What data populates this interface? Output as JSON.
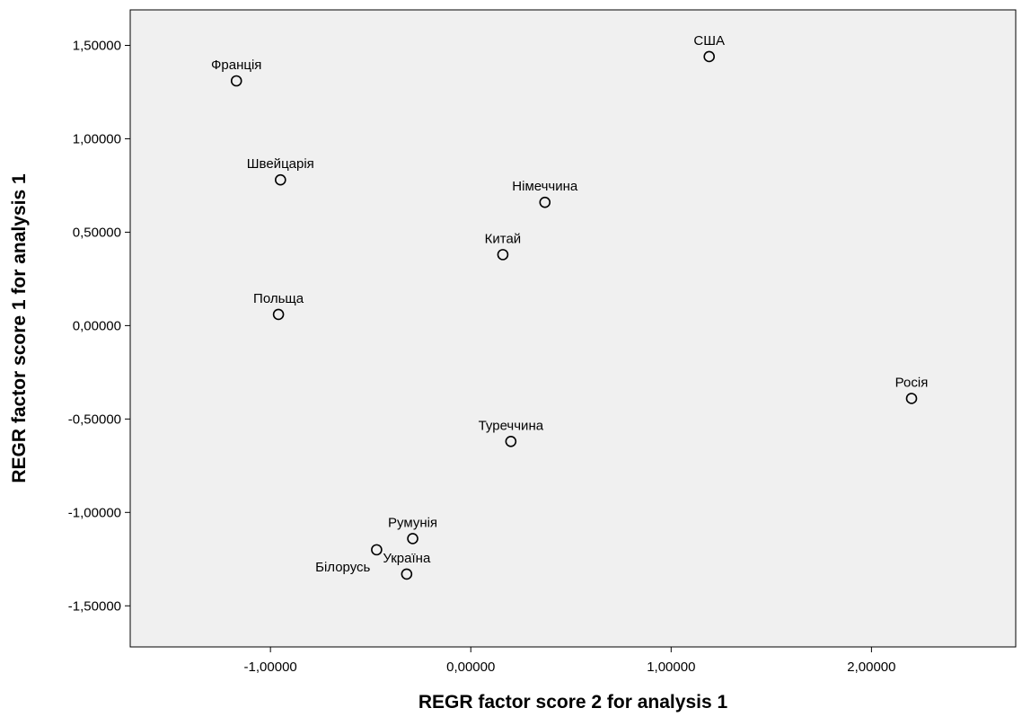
{
  "chart_data": {
    "type": "scatter",
    "xlabel": "REGR factor score   2 for analysis 1",
    "ylabel": "REGR factor score   1 for analysis 1",
    "xlim": [
      -1.7,
      2.72
    ],
    "ylim": [
      -1.72,
      1.69
    ],
    "xticks": [
      -1.0,
      0.0,
      1.0,
      2.0
    ],
    "xtick_labels": [
      "-1,00000",
      "0,00000",
      "1,00000",
      "2,00000"
    ],
    "yticks": [
      1.5,
      1.0,
      0.5,
      0.0,
      -0.5,
      -1.0,
      -1.5
    ],
    "ytick_labels": [
      "1,50000",
      "1,00000",
      "0,50000",
      "0,00000",
      "-0,50000",
      "-1,00000",
      "-1,50000"
    ],
    "grid": false,
    "colors": {
      "plot_background": "#f0f0f0",
      "marker_stroke": "#000000",
      "marker_fill": "#f0f0f0"
    },
    "points": [
      {
        "label": "США",
        "x": 1.19,
        "y": 1.44,
        "label_pos": "above"
      },
      {
        "label": "Франція",
        "x": -1.17,
        "y": 1.31,
        "label_pos": "above"
      },
      {
        "label": "Швейцарія",
        "x": -0.95,
        "y": 0.78,
        "label_pos": "above"
      },
      {
        "label": "Німеччина",
        "x": 0.37,
        "y": 0.66,
        "label_pos": "above"
      },
      {
        "label": "Китай",
        "x": 0.16,
        "y": 0.38,
        "label_pos": "above"
      },
      {
        "label": "Польща",
        "x": -0.96,
        "y": 0.06,
        "label_pos": "above"
      },
      {
        "label": "Росія",
        "x": 2.2,
        "y": -0.39,
        "label_pos": "above"
      },
      {
        "label": "Туреччина",
        "x": 0.2,
        "y": -0.62,
        "label_pos": "above"
      },
      {
        "label": "Румунія",
        "x": -0.29,
        "y": -1.14,
        "label_pos": "above"
      },
      {
        "label": "Білорусь",
        "x": -0.47,
        "y": -1.2,
        "label_pos": "below-left"
      },
      {
        "label": "Україна",
        "x": -0.32,
        "y": -1.33,
        "label_pos": "above"
      }
    ]
  }
}
